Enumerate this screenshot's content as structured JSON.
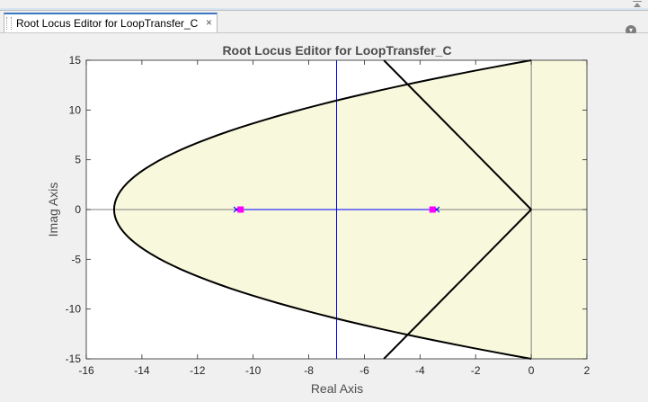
{
  "window": {
    "tab_title": "Root Locus Editor for LoopTransfer_C",
    "tab_close": "×"
  },
  "chart_data": {
    "type": "root-locus",
    "title": "Root Locus Editor for LoopTransfer_C",
    "xlabel": "Real Axis",
    "ylabel": "Imag Axis",
    "xlim": [
      -16,
      2
    ],
    "ylim": [
      -15,
      15
    ],
    "xticks": [
      "-16",
      "-14",
      "-12",
      "-10",
      "-8",
      "-6",
      "-4",
      "-2",
      "0",
      "2"
    ],
    "yticks": [
      "15",
      "10",
      "5",
      "0",
      "-5",
      "-10",
      "-15"
    ],
    "poles": [
      [
        -10.6,
        0
      ],
      [
        -3.4,
        0
      ]
    ],
    "closed_loop_poles": [
      [
        -10.45,
        0
      ],
      [
        -3.55,
        0
      ]
    ],
    "root_locus_segment": [
      -10.6,
      -3.4
    ],
    "breakaway_vertical_x": -7,
    "constraint_region": {
      "parabola_vertex": [
        -15,
        0
      ],
      "parabola_through": [
        [
          0,
          15
        ],
        [
          0,
          -15
        ]
      ],
      "damping_lines_from": [
        0,
        0
      ],
      "damping_lines_to": [
        [
          -5.3,
          15
        ],
        [
          -5.3,
          -15
        ]
      ],
      "fill_color": "#f8f8dc"
    },
    "colors": {
      "locus": "#0000ff",
      "pole_marker": "#ff00ff",
      "constraint": "#000000",
      "axes_background": "#ffffff",
      "zero_line": "#808080"
    }
  }
}
